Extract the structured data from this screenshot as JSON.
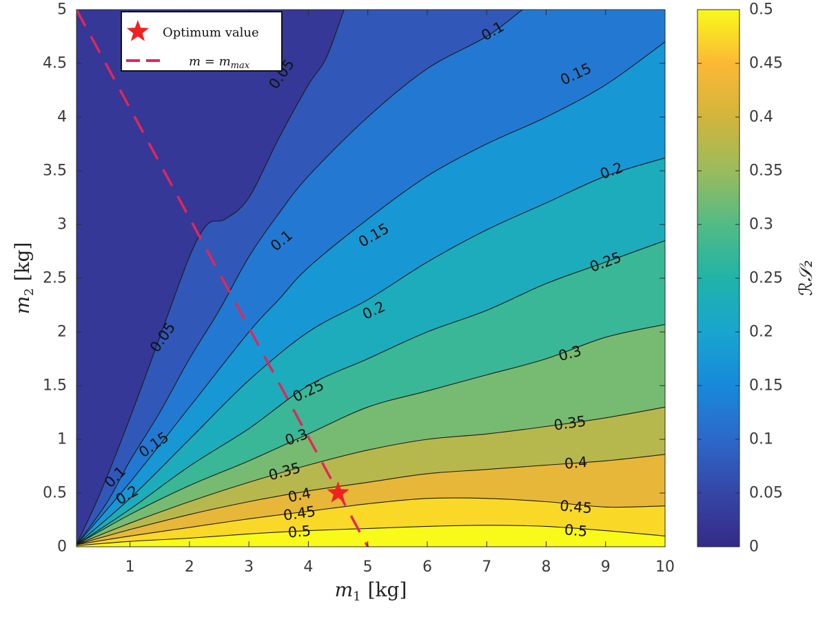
{
  "chart_data": {
    "type": "heatmap",
    "subtype": "filled-contour",
    "xlabel": {
      "var": "m",
      "sub": "1",
      "unit": "[kg]"
    },
    "ylabel": {
      "var": "m",
      "sub": "2",
      "unit": "[kg]"
    },
    "colorbar_label": "ℛ𝒮₂",
    "xlim": [
      0.1,
      10
    ],
    "ylim": [
      0,
      5
    ],
    "x_ticks": [
      "1",
      "2",
      "3",
      "4",
      "5",
      "6",
      "7",
      "8",
      "9",
      "10"
    ],
    "x_tick_values": [
      1,
      2,
      3,
      4,
      5,
      6,
      7,
      8,
      9,
      10
    ],
    "y_ticks": [
      "0",
      "0.5",
      "1",
      "1.5",
      "2",
      "2.5",
      "3",
      "3.5",
      "4",
      "4.5",
      "5"
    ],
    "y_tick_values": [
      0,
      0.5,
      1,
      1.5,
      2,
      2.5,
      3,
      3.5,
      4,
      4.5,
      5
    ],
    "colorbar": {
      "range": [
        0,
        0.5
      ],
      "ticks": [
        "0",
        "0.05",
        "0.1",
        "0.15",
        "0.2",
        "0.25",
        "0.3",
        "0.35",
        "0.4",
        "0.45",
        "0.5"
      ],
      "tick_values": [
        0,
        0.05,
        0.1,
        0.15,
        0.2,
        0.25,
        0.3,
        0.35,
        0.4,
        0.45,
        0.5
      ],
      "colormap": "parula"
    },
    "contour_levels": [
      0.05,
      0.1,
      0.15,
      0.2,
      0.25,
      0.3,
      0.35,
      0.4,
      0.45,
      0.5
    ],
    "contours": [
      {
        "level": 0.05,
        "points": [
          [
            0.1,
            0.02
          ],
          [
            0.5,
            0.5
          ],
          [
            1,
            1.2
          ],
          [
            1.5,
            1.95
          ],
          [
            2,
            2.7
          ],
          [
            2.3,
            3.0
          ],
          [
            2.6,
            3.05
          ],
          [
            3,
            3.25
          ],
          [
            3.5,
            3.8
          ],
          [
            4,
            4.3
          ],
          [
            4.3,
            4.55
          ],
          [
            4.6,
            5.0
          ]
        ]
      },
      {
        "level": 0.1,
        "points": [
          [
            0.1,
            0.02
          ],
          [
            0.6,
            0.4
          ],
          [
            1,
            0.8
          ],
          [
            1.5,
            1.25
          ],
          [
            2,
            1.75
          ],
          [
            2.5,
            2.2
          ],
          [
            3,
            2.7
          ],
          [
            3.5,
            3.1
          ],
          [
            4,
            3.45
          ],
          [
            5,
            4.0
          ],
          [
            6,
            4.45
          ],
          [
            7,
            4.75
          ],
          [
            7.6,
            5.0
          ]
        ]
      },
      {
        "level": 0.15,
        "points": [
          [
            0.1,
            0.02
          ],
          [
            1,
            0.6
          ],
          [
            2,
            1.3
          ],
          [
            3,
            2.0
          ],
          [
            3.5,
            2.3
          ],
          [
            4,
            2.6
          ],
          [
            5,
            3.05
          ],
          [
            6,
            3.45
          ],
          [
            7,
            3.75
          ],
          [
            8,
            4.0
          ],
          [
            9,
            4.3
          ],
          [
            10,
            4.7
          ]
        ]
      },
      {
        "level": 0.2,
        "points": [
          [
            0.1,
            0.02
          ],
          [
            1,
            0.45
          ],
          [
            2,
            1.0
          ],
          [
            3,
            1.55
          ],
          [
            4,
            2.0
          ],
          [
            5,
            2.3
          ],
          [
            6,
            2.65
          ],
          [
            7,
            2.95
          ],
          [
            8,
            3.2
          ],
          [
            9,
            3.45
          ],
          [
            10,
            3.62
          ]
        ]
      },
      {
        "level": 0.25,
        "points": [
          [
            0.1,
            0.02
          ],
          [
            1,
            0.35
          ],
          [
            2,
            0.75
          ],
          [
            3,
            1.1
          ],
          [
            4,
            1.5
          ],
          [
            5,
            1.75
          ],
          [
            6,
            2.0
          ],
          [
            7,
            2.2
          ],
          [
            8,
            2.45
          ],
          [
            9,
            2.65
          ],
          [
            10,
            2.85
          ]
        ]
      },
      {
        "level": 0.3,
        "points": [
          [
            0.1,
            0.02
          ],
          [
            1,
            0.3
          ],
          [
            2,
            0.57
          ],
          [
            3,
            0.8
          ],
          [
            4,
            1.05
          ],
          [
            5,
            1.3
          ],
          [
            6,
            1.45
          ],
          [
            7,
            1.6
          ],
          [
            8,
            1.75
          ],
          [
            9,
            1.95
          ],
          [
            10,
            2.07
          ]
        ]
      },
      {
        "level": 0.35,
        "points": [
          [
            0.1,
            0.02
          ],
          [
            1,
            0.22
          ],
          [
            2,
            0.42
          ],
          [
            3,
            0.6
          ],
          [
            4,
            0.76
          ],
          [
            5,
            0.9
          ],
          [
            6,
            1.0
          ],
          [
            7,
            1.05
          ],
          [
            8,
            1.12
          ],
          [
            9,
            1.2
          ],
          [
            10,
            1.3
          ]
        ]
      },
      {
        "level": 0.4,
        "points": [
          [
            0.1,
            0.02
          ],
          [
            1,
            0.16
          ],
          [
            2,
            0.3
          ],
          [
            3,
            0.42
          ],
          [
            4,
            0.52
          ],
          [
            5,
            0.6
          ],
          [
            6,
            0.68
          ],
          [
            7,
            0.72
          ],
          [
            8,
            0.76
          ],
          [
            9,
            0.8
          ],
          [
            10,
            0.86
          ]
        ]
      },
      {
        "level": 0.45,
        "points": [
          [
            0.1,
            0.02
          ],
          [
            1,
            0.1
          ],
          [
            2,
            0.18
          ],
          [
            3,
            0.26
          ],
          [
            4,
            0.33
          ],
          [
            5,
            0.4
          ],
          [
            6,
            0.45
          ],
          [
            7,
            0.45
          ],
          [
            8,
            0.42
          ],
          [
            9,
            0.37
          ],
          [
            10,
            0.38
          ]
        ]
      },
      {
        "level": 0.5,
        "points": [
          [
            0.1,
            0.01
          ],
          [
            1,
            0.05
          ],
          [
            2,
            0.08
          ],
          [
            3,
            0.12
          ],
          [
            4,
            0.15
          ],
          [
            5,
            0.17
          ],
          [
            6,
            0.19
          ],
          [
            7,
            0.2
          ],
          [
            8,
            0.19
          ],
          [
            9,
            0.15
          ],
          [
            10,
            0.1
          ]
        ]
      }
    ],
    "contour_labels": [
      {
        "text": "0.05",
        "x": 1.55,
        "y": 1.95,
        "angle": -55
      },
      {
        "text": "0.05",
        "x": 3.55,
        "y": 4.4,
        "angle": -55
      },
      {
        "text": "0.1",
        "x": 0.75,
        "y": 0.65,
        "angle": -45
      },
      {
        "text": "0.1",
        "x": 3.55,
        "y": 2.85,
        "angle": -40
      },
      {
        "text": "0.1",
        "x": 7.1,
        "y": 4.8,
        "angle": -30
      },
      {
        "text": "0.15",
        "x": 1.4,
        "y": 0.95,
        "angle": -35
      },
      {
        "text": "0.15",
        "x": 5.1,
        "y": 2.9,
        "angle": -30
      },
      {
        "text": "0.15",
        "x": 8.5,
        "y": 4.4,
        "angle": -25
      },
      {
        "text": "0.2",
        "x": 0.95,
        "y": 0.48,
        "angle": -30
      },
      {
        "text": "0.2",
        "x": 5.1,
        "y": 2.2,
        "angle": -25
      },
      {
        "text": "0.2",
        "x": 9.1,
        "y": 3.5,
        "angle": -20
      },
      {
        "text": "0.25",
        "x": 4.0,
        "y": 1.45,
        "angle": -25
      },
      {
        "text": "0.25",
        "x": 9.0,
        "y": 2.65,
        "angle": -20
      },
      {
        "text": "0.3",
        "x": 3.8,
        "y": 1.02,
        "angle": -20
      },
      {
        "text": "0.3",
        "x": 8.4,
        "y": 1.8,
        "angle": -15
      },
      {
        "text": "0.35",
        "x": 3.6,
        "y": 0.7,
        "angle": -15
      },
      {
        "text": "0.35",
        "x": 8.4,
        "y": 1.15,
        "angle": -8
      },
      {
        "text": "0.4",
        "x": 3.85,
        "y": 0.48,
        "angle": -12
      },
      {
        "text": "0.4",
        "x": 8.5,
        "y": 0.78,
        "angle": -5
      },
      {
        "text": "0.45",
        "x": 3.85,
        "y": 0.31,
        "angle": -8
      },
      {
        "text": "0.45",
        "x": 8.5,
        "y": 0.37,
        "angle": 5
      },
      {
        "text": "0.5",
        "x": 3.85,
        "y": 0.14,
        "angle": -5
      },
      {
        "text": "0.5",
        "x": 8.5,
        "y": 0.15,
        "angle": 5
      }
    ],
    "optimum": {
      "x": 4.5,
      "y": 0.5
    },
    "m_max_line": {
      "points": [
        [
          0.1,
          5.0
        ],
        [
          5.0,
          0.0
        ]
      ]
    },
    "legend": {
      "placement": "top-left",
      "entries": [
        {
          "label": "Optimum value",
          "marker": "star",
          "color": "#ee2222"
        },
        {
          "label": "m = m",
          "label_sub": "max",
          "marker": "dashed-line",
          "color": "#e3265a"
        }
      ]
    },
    "colors": {
      "star": "#ee2222",
      "dashed": "#e3265a",
      "contour_line": "#1a1a1a"
    }
  }
}
